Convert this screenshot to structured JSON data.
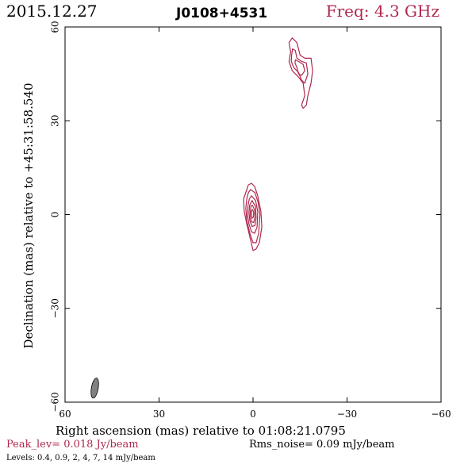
{
  "header": {
    "date": "2015.12.27",
    "source": "J0108+4531",
    "frequency": "Freq: 4.3 GHz"
  },
  "footer": {
    "peak": "Peak_lev=  0.018 Jy/beam",
    "rms": "Rms_noise= 0.09 mJy/beam",
    "levels": "Levels: 0.4, 0.9,   2,   4,   7,  14 mJy/beam"
  },
  "chart_data": {
    "type": "contour",
    "xlabel": "Right ascension (mas) relative to 01:08:21.0795",
    "ylabel": "Declination (mas) relative to +45:31:58.540",
    "xlim": [
      60,
      -60
    ],
    "ylim": [
      -60,
      60
    ],
    "x_ticks": [
      "60",
      "30",
      "0",
      "−30",
      "−60"
    ],
    "y_ticks": [
      "−60",
      "−30",
      "0",
      "30",
      "60"
    ],
    "contour_color": "#b0284e",
    "beam_color": "#808080",
    "contour_levels_mJy": [
      0.4,
      0.9,
      2,
      4,
      7,
      14
    ],
    "components": [
      {
        "center": [
          0,
          0
        ],
        "contours": [
          [
            [
              0.5,
              10
            ],
            [
              -0.5,
              9
            ],
            [
              -1.5,
              6
            ],
            [
              -2.5,
              1
            ],
            [
              -2.8,
              -4
            ],
            [
              -2,
              -9
            ],
            [
              -1,
              -11
            ],
            [
              0,
              -11.5
            ],
            [
              0.8,
              -8
            ],
            [
              2,
              -3
            ],
            [
              2.8,
              1
            ],
            [
              3,
              5
            ],
            [
              2,
              8
            ],
            [
              1.5,
              9.5
            ]
          ],
          [
            [
              0.8,
              8
            ],
            [
              -0.6,
              7
            ],
            [
              -1.6,
              4
            ],
            [
              -2.2,
              0
            ],
            [
              -1.8,
              -6
            ],
            [
              -1,
              -9
            ],
            [
              0,
              -9
            ],
            [
              1,
              -6
            ],
            [
              2,
              -2
            ],
            [
              2.3,
              2
            ],
            [
              2,
              5
            ],
            [
              1.5,
              7
            ]
          ],
          [
            [
              0.5,
              6
            ],
            [
              -0.8,
              4.5
            ],
            [
              -1.5,
              1
            ],
            [
              -1.3,
              -4
            ],
            [
              -0.5,
              -6
            ],
            [
              0.5,
              -5.5
            ],
            [
              1.3,
              -3
            ],
            [
              1.8,
              0
            ],
            [
              1.6,
              3
            ],
            [
              1.2,
              5
            ]
          ],
          [
            [
              0.3,
              4.5
            ],
            [
              -0.8,
              2.5
            ],
            [
              -1,
              -1
            ],
            [
              -0.6,
              -3.5
            ],
            [
              0.3,
              -3.8
            ],
            [
              1,
              -2
            ],
            [
              1.3,
              0.5
            ],
            [
              1.1,
              3
            ]
          ],
          [
            [
              0.2,
              3
            ],
            [
              -0.5,
              1.5
            ],
            [
              -0.6,
              -0.8
            ],
            [
              -0.2,
              -2.5
            ],
            [
              0.5,
              -2.3
            ],
            [
              0.9,
              -0.5
            ],
            [
              0.8,
              1.5
            ],
            [
              0.6,
              2.8
            ]
          ],
          [
            [
              0.1,
              1.6
            ],
            [
              -0.2,
              0.6
            ],
            [
              -0.1,
              -0.8
            ],
            [
              0.3,
              -1.2
            ],
            [
              0.5,
              0
            ],
            [
              0.5,
              1.2
            ]
          ]
        ]
      },
      {
        "center": [
          -15,
          48
        ],
        "contours": [
          [
            [
              -12,
              52
            ],
            [
              -11.5,
              55
            ],
            [
              -12.5,
              56.5
            ],
            [
              -14,
              55
            ],
            [
              -15,
              51
            ],
            [
              -16.5,
              50
            ],
            [
              -18.5,
              50
            ],
            [
              -19,
              46
            ],
            [
              -18.5,
              42
            ],
            [
              -17.5,
              38
            ],
            [
              -17,
              35
            ],
            [
              -16,
              34
            ],
            [
              -15.5,
              35
            ],
            [
              -16.5,
              38
            ],
            [
              -16,
              42
            ],
            [
              -14.5,
              44
            ],
            [
              -12.5,
              46
            ],
            [
              -11.5,
              49
            ]
          ],
          [
            [
              -12.3,
              51
            ],
            [
              -12.6,
              53
            ],
            [
              -13.5,
              52.5
            ],
            [
              -14,
              50
            ],
            [
              -15.5,
              49
            ],
            [
              -17,
              48.5
            ],
            [
              -17.5,
              45
            ],
            [
              -16.5,
              42
            ],
            [
              -15.5,
              43
            ],
            [
              -14.5,
              45.5
            ],
            [
              -13,
              47
            ],
            [
              -12.2,
              49
            ]
          ],
          [
            [
              -13.5,
              49.5
            ],
            [
              -14.5,
              49
            ],
            [
              -16,
              48
            ],
            [
              -16.5,
              46
            ],
            [
              -15.5,
              44.5
            ],
            [
              -14.5,
              45
            ],
            [
              -14,
              47
            ],
            [
              -13.4,
              48.5
            ]
          ]
        ]
      }
    ],
    "beam": {
      "center": [
        50.5,
        -55.5
      ],
      "major_axis": 6.5,
      "minor_axis": 2.2,
      "position_angle_deg": 10
    }
  }
}
